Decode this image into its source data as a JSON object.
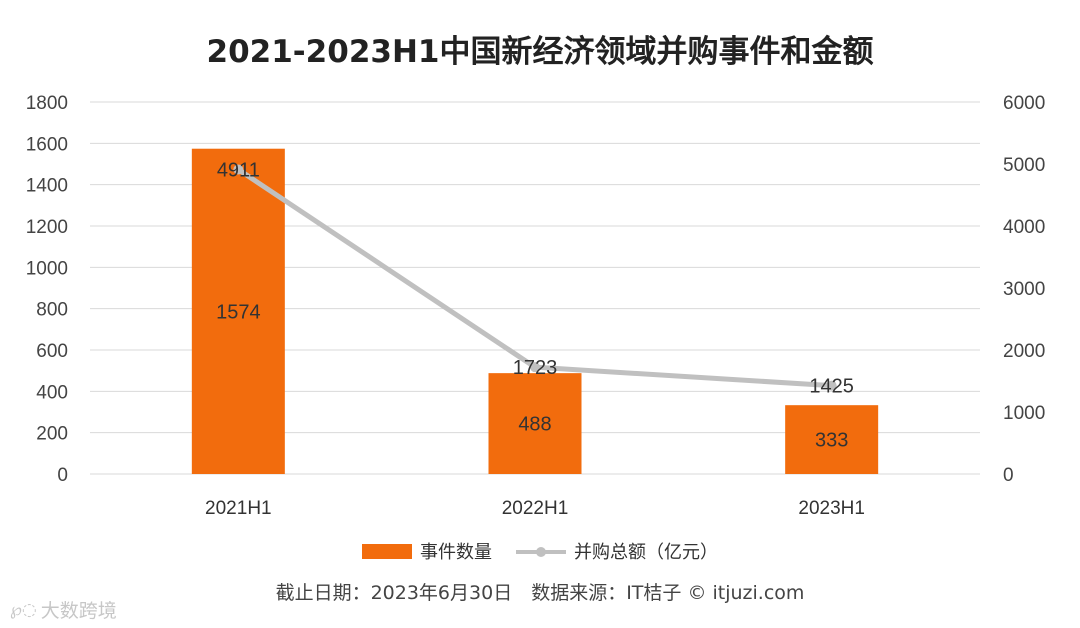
{
  "chart_data": {
    "type": "bar",
    "title": "2021-2023H1中国新经济领域并购事件和金额",
    "categories": [
      "2021H1",
      "2022H1",
      "2023H1"
    ],
    "series": [
      {
        "name": "事件数量",
        "type": "bar",
        "axis": "left",
        "color": "#f26c0d",
        "values": [
          1574,
          488,
          333
        ],
        "labels": [
          "1574",
          "488",
          "333"
        ]
      },
      {
        "name": "并购总额（亿元）",
        "type": "line",
        "axis": "right",
        "color": "#c0c0c0",
        "values": [
          4911,
          1723,
          1425
        ],
        "labels": [
          "4911",
          "1723",
          "1425"
        ]
      }
    ],
    "y_left": {
      "range": [
        0,
        1800
      ],
      "ticks": [
        "0",
        "200",
        "400",
        "600",
        "800",
        "1000",
        "1200",
        "1400",
        "1600",
        "1800"
      ]
    },
    "y_right": {
      "range": [
        0,
        6000
      ],
      "ticks": [
        "0",
        "1000",
        "2000",
        "3000",
        "4000",
        "5000",
        "6000"
      ]
    },
    "grid": true,
    "legend_position": "bottom"
  },
  "footnote": "截止日期：2023年6月30日　数据来源：IT桔子 © itjuzi.com",
  "watermark": {
    "text": "大数跨境"
  }
}
